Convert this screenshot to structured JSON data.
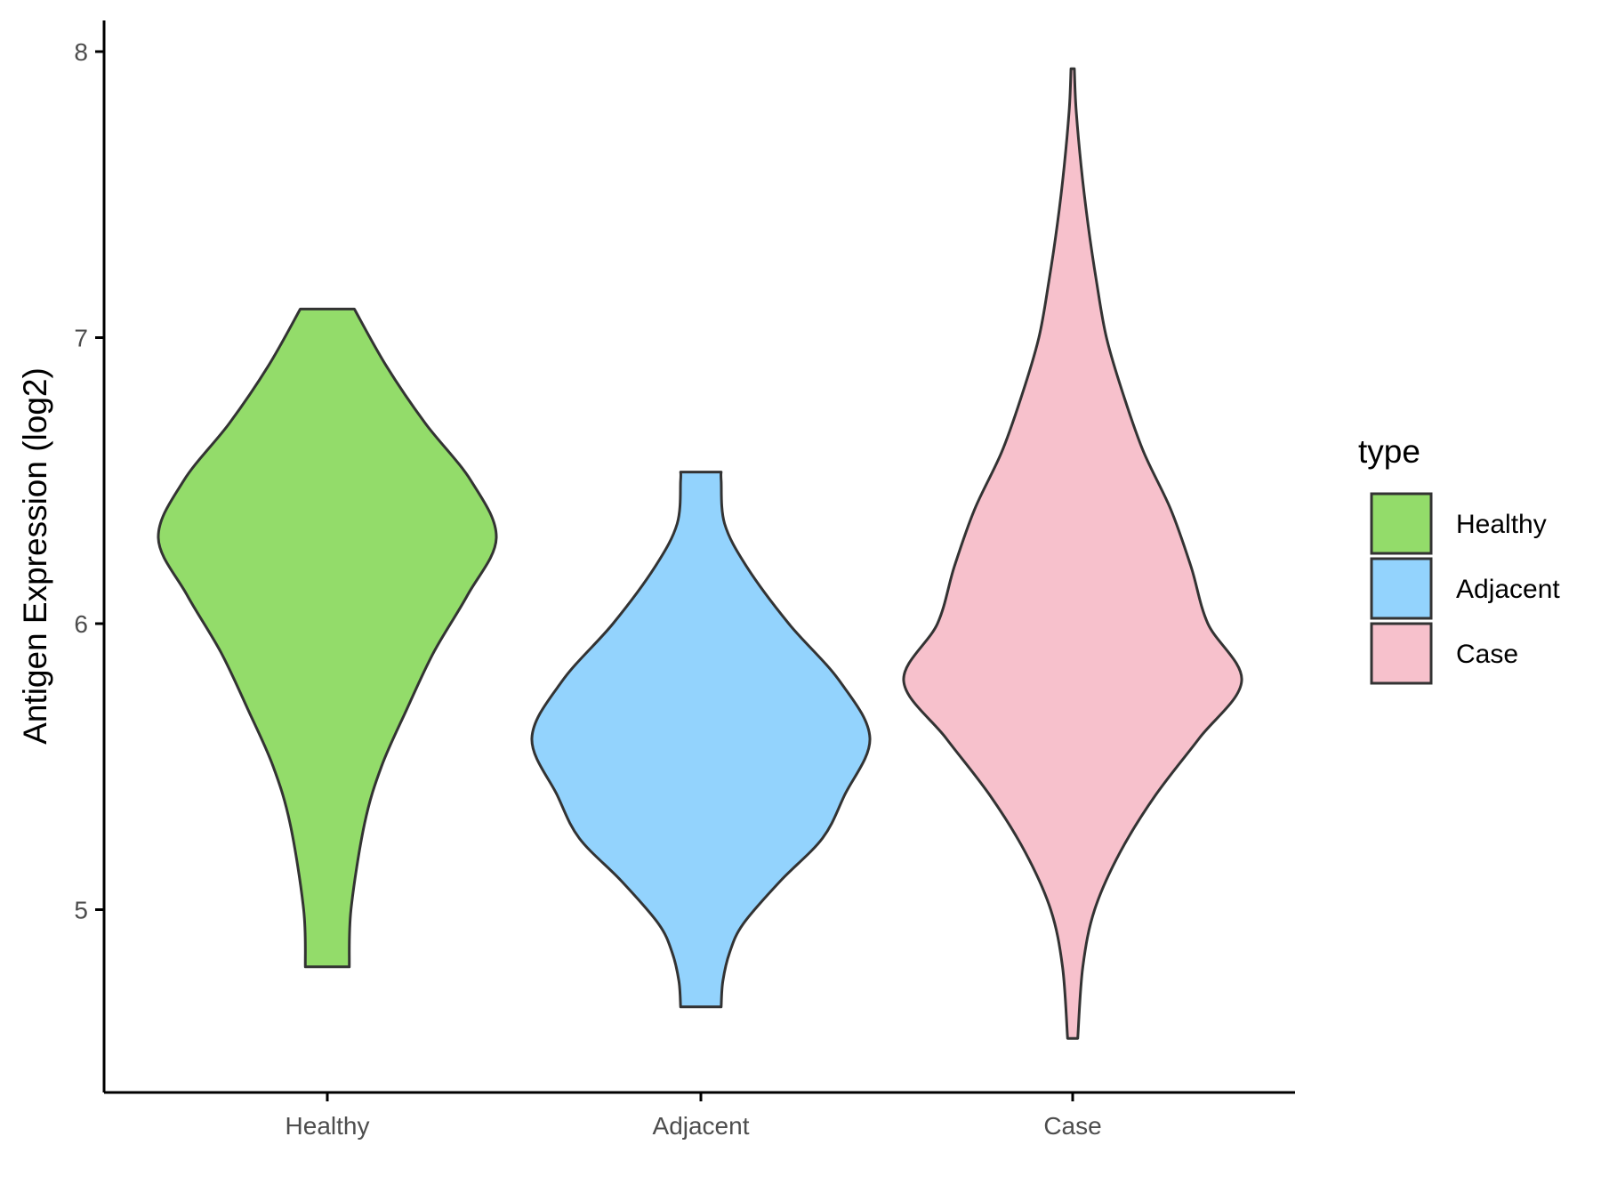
{
  "chart_data": {
    "type": "violin",
    "xlabel": "",
    "ylabel": "Antigen Expression (log2)",
    "ylim": [
      4.42,
      8.1
    ],
    "yticks": [
      5,
      6,
      7,
      8
    ],
    "categories": [
      "Healthy",
      "Adjacent",
      "Case"
    ],
    "grid": false,
    "legend": {
      "title": "type",
      "placement": "right",
      "entries": [
        {
          "label": "Healthy",
          "color": "#93DC6A"
        },
        {
          "label": "Adjacent",
          "color": "#93D3FD"
        },
        {
          "label": "Case",
          "color": "#F7C1CC"
        }
      ]
    },
    "series": [
      {
        "category": "Healthy",
        "color": "#93DC6A",
        "min": 4.8,
        "max": 7.1,
        "density": [
          [
            4.8,
            0.13
          ],
          [
            5.0,
            0.14
          ],
          [
            5.3,
            0.22
          ],
          [
            5.5,
            0.32
          ],
          [
            5.7,
            0.47
          ],
          [
            5.9,
            0.63
          ],
          [
            6.1,
            0.83
          ],
          [
            6.3,
            1.0
          ],
          [
            6.5,
            0.85
          ],
          [
            6.7,
            0.58
          ],
          [
            6.9,
            0.35
          ],
          [
            7.1,
            0.16
          ]
        ]
      },
      {
        "category": "Adjacent",
        "color": "#93D3FD",
        "min": 4.66,
        "max": 6.53,
        "density": [
          [
            4.66,
            0.12
          ],
          [
            4.75,
            0.13
          ],
          [
            4.85,
            0.17
          ],
          [
            4.95,
            0.25
          ],
          [
            5.1,
            0.47
          ],
          [
            5.25,
            0.72
          ],
          [
            5.4,
            0.85
          ],
          [
            5.6,
            1.0
          ],
          [
            5.8,
            0.82
          ],
          [
            6.0,
            0.52
          ],
          [
            6.2,
            0.27
          ],
          [
            6.35,
            0.14
          ],
          [
            6.5,
            0.12
          ],
          [
            6.53,
            0.12
          ]
        ]
      },
      {
        "category": "Case",
        "color": "#F7C1CC",
        "min": 4.55,
        "max": 7.94,
        "density": [
          [
            4.55,
            0.03
          ],
          [
            4.8,
            0.06
          ],
          [
            5.0,
            0.13
          ],
          [
            5.2,
            0.28
          ],
          [
            5.4,
            0.49
          ],
          [
            5.6,
            0.75
          ],
          [
            5.8,
            1.0
          ],
          [
            6.0,
            0.8
          ],
          [
            6.2,
            0.7
          ],
          [
            6.4,
            0.58
          ],
          [
            6.6,
            0.42
          ],
          [
            6.8,
            0.3
          ],
          [
            7.0,
            0.2
          ],
          [
            7.2,
            0.14
          ],
          [
            7.4,
            0.09
          ],
          [
            7.6,
            0.05
          ],
          [
            7.8,
            0.02
          ],
          [
            7.94,
            0.01
          ]
        ]
      }
    ]
  }
}
